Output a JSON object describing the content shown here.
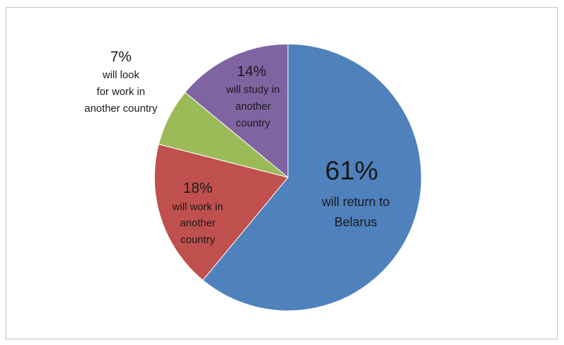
{
  "chart_data": {
    "type": "pie",
    "title": "",
    "slices": [
      {
        "id": "return-belarus",
        "value": 61,
        "percent_label": "61%",
        "text_lines": [
          "will return  to",
          "Belarus"
        ],
        "color": "#4f81bd"
      },
      {
        "id": "work-abroad",
        "value": 18,
        "percent_label": "18%",
        "text_lines": [
          "will work in",
          "another",
          "country"
        ],
        "color": "#c0504d"
      },
      {
        "id": "look-work-abroad",
        "value": 7,
        "percent_label": "7%",
        "text_lines": [
          "will look",
          "for work in",
          "another country"
        ],
        "color": "#9bbb59"
      },
      {
        "id": "study-abroad",
        "value": 14,
        "percent_label": "14%",
        "text_lines": [
          "will study in",
          "another",
          "country"
        ],
        "color": "#8064a2"
      }
    ],
    "start_angle_deg": 0,
    "direction": "clockwise",
    "legend": "none",
    "labels": "data labels"
  }
}
